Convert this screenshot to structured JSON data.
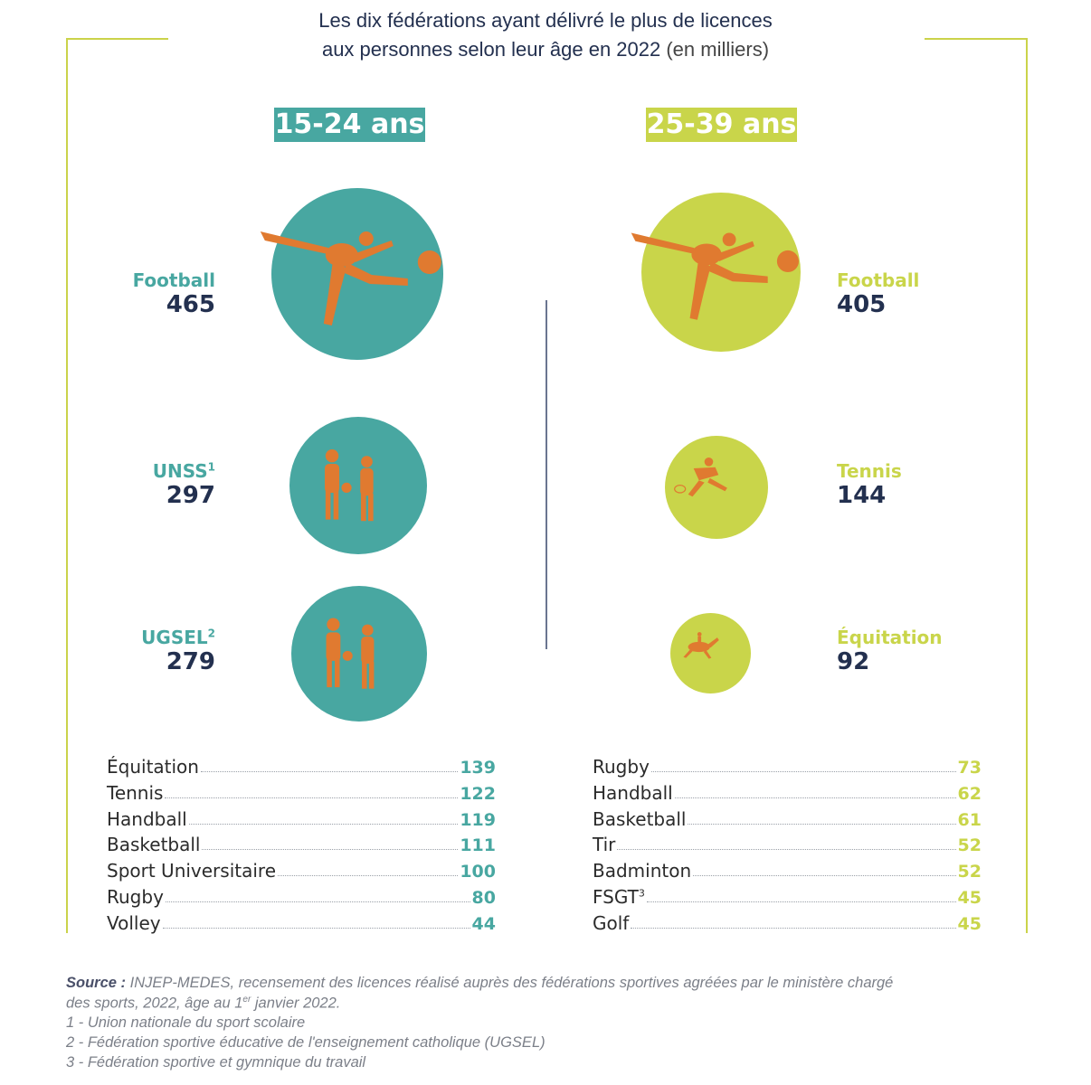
{
  "title": {
    "line1": "Les dix fédérations ayant délivré le plus de licences",
    "line2": "aux personnes selon leur âge en 2022",
    "unit": "(en milliers)"
  },
  "colors": {
    "teal": "#48a7a1",
    "lime": "#c9d54a",
    "orange": "#e07a30",
    "navy": "#23304f"
  },
  "chart_data": [
    {
      "type": "bubble",
      "group": "15-24 ans",
      "top3": [
        {
          "name": "Football",
          "value": 465,
          "icon": "football-player-icon"
        },
        {
          "name": "UNSS",
          "note": "1",
          "value": 297,
          "icon": "school-sport-kids-icon"
        },
        {
          "name": "UGSEL",
          "note": "2",
          "value": 279,
          "icon": "school-sport-kids-icon"
        }
      ],
      "others": [
        {
          "name": "Équitation",
          "value": 139
        },
        {
          "name": "Tennis",
          "value": 122
        },
        {
          "name": "Handball",
          "value": 119
        },
        {
          "name": "Basketball",
          "value": 111
        },
        {
          "name": "Sport Universitaire",
          "value": 100
        },
        {
          "name": "Rugby",
          "value": 80
        },
        {
          "name": "Volley",
          "value": 44
        }
      ]
    },
    {
      "type": "bubble",
      "group": "25-39 ans",
      "top3": [
        {
          "name": "Football",
          "value": 405,
          "icon": "football-player-icon"
        },
        {
          "name": "Tennis",
          "value": 144,
          "icon": "tennis-player-icon"
        },
        {
          "name": "Équitation",
          "value": 92,
          "icon": "horse-rider-icon"
        }
      ],
      "others": [
        {
          "name": "Rugby",
          "value": 73
        },
        {
          "name": "Handball",
          "value": 62
        },
        {
          "name": "Basketball",
          "value": 61
        },
        {
          "name": "Tir",
          "value": 52
        },
        {
          "name": "Badminton",
          "value": 52
        },
        {
          "name": "FSGT",
          "note": "3",
          "value": 45
        },
        {
          "name": "Golf",
          "value": 45
        }
      ]
    }
  ],
  "footer": {
    "source_label": "Source :",
    "source_text_1": "INJEP-MEDES, recensement des licences réalisé auprès des fédérations sportives agréées par le ministère chargé",
    "source_text_2a": "des sports, 2022, âge au 1",
    "source_text_2sup": "er",
    "source_text_2b": " janvier 2022.",
    "note1": "1 - Union nationale du sport scolaire",
    "note2": "2 - Fédération sportive éducative de l'enseignement catholique (UGSEL)",
    "note3": "3 - Fédération sportive et gymnique du travail"
  }
}
